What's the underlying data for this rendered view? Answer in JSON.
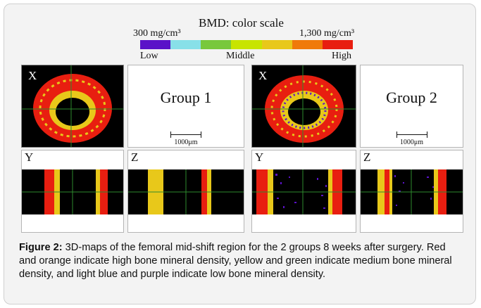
{
  "color_scale": {
    "title": "BMD:  color scale",
    "min_label": "300 mg/cm³",
    "max_label": "1,300 mg/cm³",
    "levels": {
      "low": "Low",
      "middle": "Middle",
      "high": "High"
    },
    "colors": [
      "#5a12c8",
      "#88e0e8",
      "#78c83c",
      "#c8e400",
      "#e8c81a",
      "#f07a0a",
      "#e81e10"
    ]
  },
  "groups": [
    {
      "name": "Group  1",
      "scalebar": "1000μm",
      "views": {
        "x": "X",
        "y": "Y",
        "z": "Z"
      }
    },
    {
      "name": "Group  2",
      "scalebar": "1000μm",
      "views": {
        "x": "X",
        "y": "Y",
        "z": "Z"
      }
    }
  ],
  "caption": {
    "label": "Figure 2:",
    "text": " 3D-maps of the femoral mid-shift region for the 2 groups 8 weeks after surgery. Red and orange indicate high bone mineral density, yellow and green indicate medium bone mineral density, and light blue and purple indicate low bone mineral density."
  }
}
